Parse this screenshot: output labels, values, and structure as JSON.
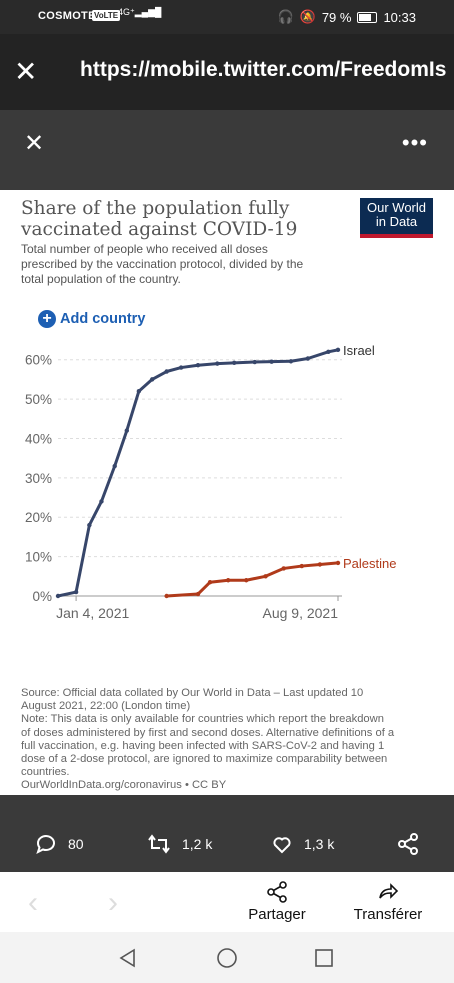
{
  "status": {
    "carrier": "COSMOTE",
    "volte": "VoLTE",
    "network": "4G⁺",
    "battery": "79 %",
    "time": "10:33"
  },
  "browser": {
    "url": "https://mobile.twitter.com/FreedomIs"
  },
  "card": {
    "title": "Share of the population fully vaccinated against COVID-19",
    "logo_line1": "Our World",
    "logo_line2": "in Data",
    "subtitle": "Total number of people who received all doses prescribed by the vaccination protocol, divided by the total population of the country.",
    "add_country": "Add country",
    "source_lines": [
      "Source: Official data collated by Our World in Data – Last updated 10",
      "August 2021, 22:00 (London time)",
      "Note: This data is only available for countries which report the breakdown",
      "of doses administered by first and second doses. Alternative definitions of a",
      "full vaccination, e.g. having been infected with SARS-CoV-2 and having 1",
      "dose of a 2-dose protocol, are ignored to maximize comparability between",
      "countries.",
      "OurWorldInData.org/coronavirus • CC BY"
    ]
  },
  "chart_data": {
    "type": "line",
    "title": "Share of the population fully vaccinated against COVID-19",
    "y_tick_labels": [
      "0%",
      "10%",
      "20%",
      "30%",
      "40%",
      "50%",
      "60%"
    ],
    "x_tick_labels": [
      "Jan 4, 2021",
      "Aug 9, 2021"
    ],
    "ylim": [
      0,
      65
    ],
    "grid": true,
    "series": [
      {
        "name": "Israel",
        "color": "#37466a",
        "x": [
          "2020-12-20",
          "2021-01-04",
          "2021-01-15",
          "2021-01-25",
          "2021-02-05",
          "2021-02-15",
          "2021-02-25",
          "2021-03-08",
          "2021-03-20",
          "2021-04-01",
          "2021-04-15",
          "2021-05-01",
          "2021-05-15",
          "2021-06-01",
          "2021-06-15",
          "2021-07-01",
          "2021-07-15",
          "2021-08-01",
          "2021-08-09"
        ],
        "y": [
          0,
          1,
          18,
          24,
          33,
          42,
          52,
          55,
          57,
          58,
          58.6,
          59,
          59.2,
          59.4,
          59.5,
          59.6,
          60.3,
          62,
          62.5
        ]
      },
      {
        "name": "Palestine",
        "color": "#b03a1a",
        "x": [
          "2021-03-20",
          "2021-04-15",
          "2021-04-25",
          "2021-05-10",
          "2021-05-25",
          "2021-06-10",
          "2021-06-25",
          "2021-07-10",
          "2021-07-25",
          "2021-08-09"
        ],
        "y": [
          0,
          0.5,
          3.5,
          4,
          4,
          5,
          7,
          7.6,
          8,
          8.4
        ]
      }
    ]
  },
  "actions": {
    "replies": "80",
    "retweets": "1,2 k",
    "likes": "1,3 k"
  },
  "bottom": {
    "share": "Partager",
    "forward": "Transférer"
  }
}
